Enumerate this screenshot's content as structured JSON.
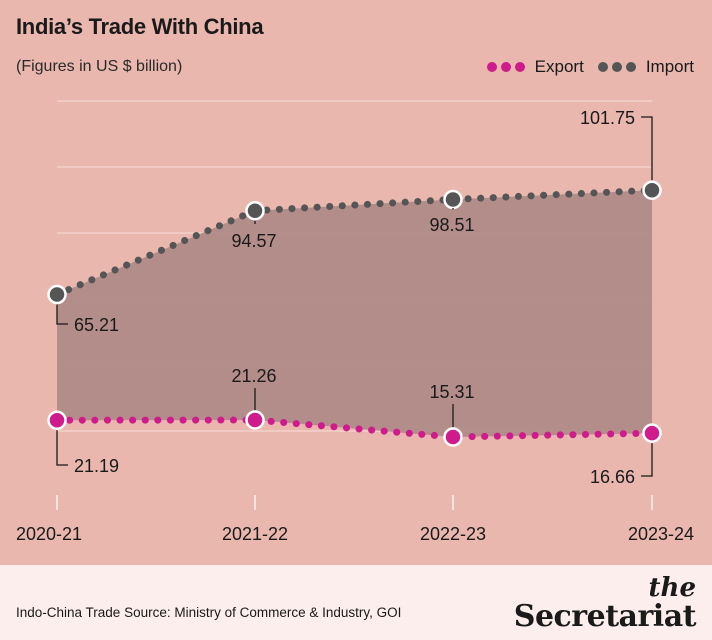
{
  "header": {
    "title": "India’s Trade With China",
    "subtitle": "(Figures in US $ billion)"
  },
  "legend": [
    {
      "label": "Export",
      "color": "#d01b8c"
    },
    {
      "label": "Import",
      "color": "#555555"
    }
  ],
  "chart_data": {
    "type": "line",
    "categories": [
      "2020-21",
      "2021-22",
      "2022-23",
      "2023-24"
    ],
    "series": [
      {
        "name": "Export",
        "values": [
          21.19,
          21.26,
          15.31,
          16.66
        ],
        "color": "#d01b8c"
      },
      {
        "name": "Import",
        "values": [
          65.21,
          94.57,
          98.51,
          101.75
        ],
        "color": "#555555"
      }
    ],
    "data_labels": {
      "Export": [
        "21.19",
        "21.26",
        "15.31",
        "16.66"
      ],
      "Import": [
        "65.21",
        "94.57",
        "98.51",
        "101.75"
      ]
    },
    "title": "India’s Trade With China",
    "ylabel": "",
    "xlabel": "",
    "ylim": [
      -5,
      133
    ],
    "grid": true,
    "area_fill_between_series": "#b08a87",
    "legend_position": "top-right"
  },
  "footer": {
    "source": "Indo-China Trade Source: Ministry of Commerce & Industry, GOI",
    "brand_the": "the",
    "brand_name": "Secretariat"
  }
}
